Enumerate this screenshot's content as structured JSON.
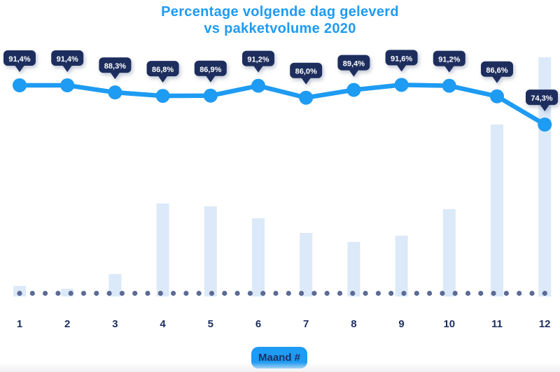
{
  "title": {
    "line1": "Percentage volgende dag geleverd",
    "line2": "vs pakketvolume 2020"
  },
  "x_axis": {
    "badge_label": "Maand #",
    "tick_labels": [
      "1",
      "2",
      "3",
      "4",
      "5",
      "6",
      "7",
      "8",
      "9",
      "10",
      "11",
      "12"
    ]
  },
  "colors": {
    "accent_blue": "#1e9bf2",
    "navy": "#1d2e5e",
    "bar_fill": "#dbe9f8",
    "dot_gray": "#5c6b95",
    "badge_text": "#ffffff",
    "background": "#ffffff"
  },
  "chart_data": {
    "type": "line",
    "title": "Percentage volgende dag geleverd vs pakketvolume 2020",
    "xlabel": "Maand #",
    "ylabel": "",
    "categories": [
      "1",
      "2",
      "3",
      "4",
      "5",
      "6",
      "7",
      "8",
      "9",
      "10",
      "11",
      "12"
    ],
    "grid": "off",
    "legend": "none",
    "baseline_style": "dotted",
    "series": [
      {
        "name": "Percentage volgende dag geleverd",
        "type": "line",
        "unit": "%",
        "values": [
          91.4,
          91.4,
          88.3,
          86.8,
          86.9,
          91.2,
          86.0,
          89.4,
          91.6,
          91.2,
          86.6,
          74.3
        ],
        "labels": [
          "91,4%",
          "91,4%",
          "88,3%",
          "86,8%",
          "86,9%",
          "91,2%",
          "86,0%",
          "89,4%",
          "91,6%",
          "91,2%",
          "86,6%",
          "74,3%"
        ]
      },
      {
        "name": "Pakketvolume 2020",
        "type": "bar",
        "unit": "relative index (estimated from bar heights, max = 100)",
        "values": [
          4.4,
          3.2,
          9.4,
          38.9,
          37.7,
          32.7,
          26.6,
          22.8,
          25.4,
          36.5,
          71.9,
          100
        ]
      }
    ]
  }
}
